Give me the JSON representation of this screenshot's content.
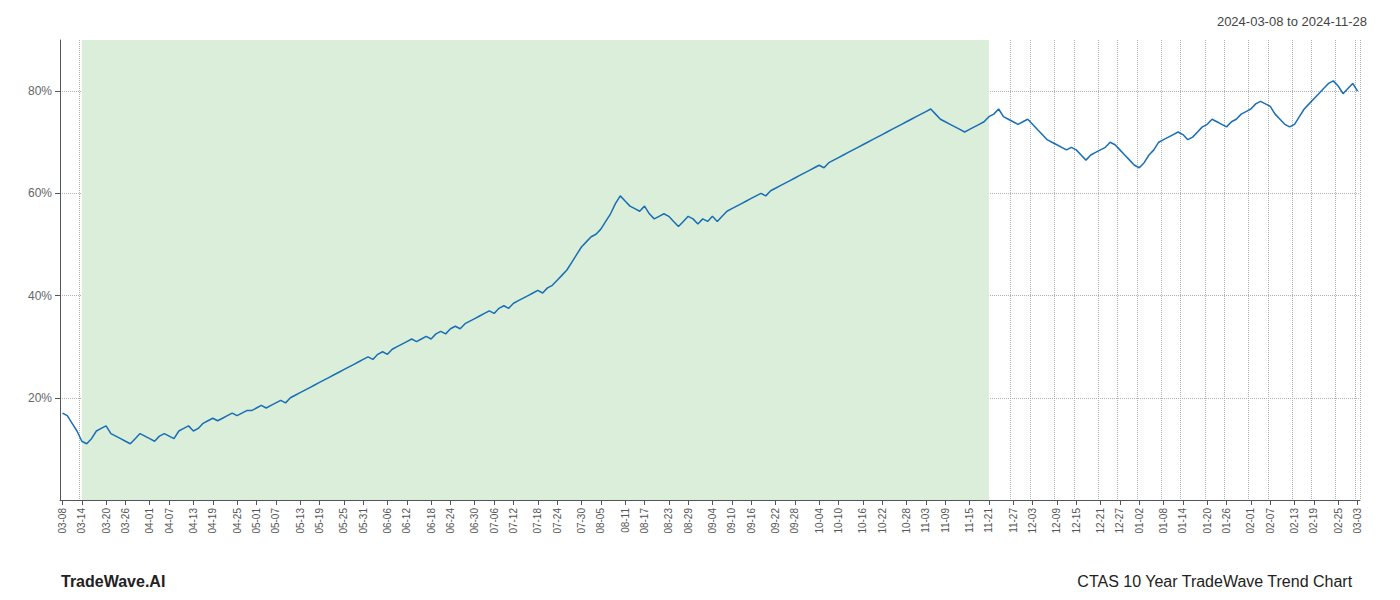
{
  "chart_data": {
    "type": "line",
    "title": "CTAS 10 Year TradeWave Trend Chart",
    "subtitle": "2024-03-08 to 2024-11-28",
    "annotations": [
      "TradeWave.AI"
    ],
    "categories": [
      "03-08",
      null,
      null,
      null,
      "03-14",
      null,
      null,
      null,
      null,
      "03-20",
      null,
      null,
      null,
      "03-26",
      null,
      null,
      null,
      null,
      "04-01",
      null,
      null,
      null,
      "04-07",
      null,
      null,
      null,
      null,
      "04-13",
      null,
      null,
      null,
      "04-19",
      null,
      null,
      null,
      null,
      "04-25",
      null,
      null,
      null,
      "05-01",
      null,
      null,
      null,
      "05-07",
      null,
      null,
      null,
      null,
      "05-13",
      null,
      null,
      null,
      "05-19",
      null,
      null,
      null,
      null,
      "05-25",
      null,
      null,
      null,
      "05-31",
      null,
      null,
      null,
      null,
      "06-06",
      null,
      null,
      null,
      "06-12",
      null,
      null,
      null,
      null,
      "06-18",
      null,
      null,
      null,
      "06-24",
      null,
      null,
      null,
      null,
      "06-30",
      null,
      null,
      null,
      "07-06",
      null,
      null,
      null,
      "07-12",
      null,
      null,
      null,
      null,
      "07-18",
      null,
      null,
      null,
      "07-24",
      null,
      null,
      null,
      null,
      "07-30",
      null,
      null,
      null,
      "08-05",
      null,
      null,
      null,
      null,
      "08-11",
      null,
      null,
      null,
      "08-17",
      null,
      null,
      null,
      null,
      "08-23",
      null,
      null,
      null,
      "08-29",
      null,
      null,
      null,
      null,
      "09-04",
      null,
      null,
      null,
      "09-10",
      null,
      null,
      null,
      "09-16",
      null,
      null,
      null,
      null,
      "09-22",
      null,
      null,
      null,
      "09-28",
      null,
      null,
      null,
      null,
      "10-04",
      null,
      null,
      null,
      "10-10",
      null,
      null,
      null,
      null,
      "10-16",
      null,
      null,
      null,
      "10-22",
      null,
      null,
      null,
      null,
      "10-28",
      null,
      null,
      null,
      "11-03",
      null,
      null,
      null,
      "11-09",
      null,
      null,
      null,
      null,
      "11-15",
      null,
      null,
      null,
      "11-21",
      null,
      null,
      null,
      null,
      "11-27",
      null,
      null,
      null,
      "12-03",
      null,
      null,
      null,
      null,
      "12-09",
      null,
      null,
      null,
      "12-15",
      null,
      null,
      null,
      null,
      "12-21",
      null,
      null,
      null,
      "12-27",
      null,
      null,
      null,
      "01-02",
      null,
      null,
      null,
      null,
      "01-08",
      null,
      null,
      null,
      "01-14",
      null,
      null,
      null,
      null,
      "01-20",
      null,
      null,
      null,
      "01-26",
      null,
      null,
      null,
      null,
      "02-01",
      null,
      null,
      null,
      "02-07",
      null,
      null,
      null,
      null,
      "02-13",
      null,
      null,
      null,
      "02-19",
      null,
      null,
      null,
      null,
      "02-25",
      null,
      null,
      null,
      "03-03"
    ],
    "values": [
      17.0,
      16.5,
      15.0,
      13.5,
      11.5,
      11.0,
      12.0,
      13.5,
      14.0,
      14.5,
      13.0,
      12.5,
      12.0,
      11.5,
      11.0,
      12.0,
      13.0,
      12.5,
      12.0,
      11.5,
      12.5,
      13.0,
      12.5,
      12.0,
      13.5,
      14.0,
      14.5,
      13.5,
      14.0,
      15.0,
      15.5,
      16.0,
      15.5,
      16.0,
      16.5,
      17.0,
      16.5,
      17.0,
      17.5,
      17.5,
      18.0,
      18.5,
      18.0,
      18.5,
      19.0,
      19.5,
      19.0,
      20.0,
      20.5,
      21.0,
      21.5,
      22.0,
      22.5,
      23.0,
      23.5,
      24.0,
      24.5,
      25.0,
      25.5,
      26.0,
      26.5,
      27.0,
      27.5,
      28.0,
      27.5,
      28.5,
      29.0,
      28.5,
      29.5,
      30.0,
      30.5,
      31.0,
      31.5,
      31.0,
      31.5,
      32.0,
      31.5,
      32.5,
      33.0,
      32.5,
      33.5,
      34.0,
      33.5,
      34.5,
      35.0,
      35.5,
      36.0,
      36.5,
      37.0,
      36.5,
      37.5,
      38.0,
      37.5,
      38.5,
      39.0,
      39.5,
      40.0,
      40.5,
      41.0,
      40.5,
      41.5,
      42.0,
      43.0,
      44.0,
      45.0,
      46.5,
      48.0,
      49.5,
      50.5,
      51.5,
      52.0,
      53.0,
      54.5,
      56.0,
      58.0,
      59.5,
      58.5,
      57.5,
      57.0,
      56.5,
      57.5,
      56.0,
      55.0,
      55.5,
      56.0,
      55.5,
      54.5,
      53.5,
      54.5,
      55.5,
      55.0,
      54.0,
      55.0,
      54.5,
      55.5,
      54.5,
      55.5,
      56.5,
      57.0,
      57.5,
      58.0,
      58.5,
      59.0,
      59.5,
      60.0,
      59.5,
      60.5,
      61.0,
      61.5,
      62.0,
      62.5,
      63.0,
      63.5,
      64.0,
      64.5,
      65.0,
      65.5,
      65.0,
      66.0,
      66.5,
      67.0,
      67.5,
      68.0,
      68.5,
      69.0,
      69.5,
      70.0,
      70.5,
      71.0,
      71.5,
      72.0,
      72.5,
      73.0,
      73.5,
      74.0,
      74.5,
      75.0,
      75.5,
      76.0,
      76.5,
      75.5,
      74.5,
      74.0,
      73.5,
      73.0,
      72.5,
      72.0,
      72.5,
      73.0,
      73.5,
      74.0,
      75.0,
      75.5,
      76.5,
      75.0,
      74.5,
      74.0,
      73.5,
      74.0,
      74.5,
      73.5,
      72.5,
      71.5,
      70.5,
      70.0,
      69.5,
      69.0,
      68.5,
      69.0,
      68.5,
      67.5,
      66.5,
      67.5,
      68.0,
      68.5,
      69.0,
      70.0,
      69.5,
      68.5,
      67.5,
      66.5,
      65.5,
      65.0,
      66.0,
      67.5,
      68.5,
      70.0,
      70.5,
      71.0,
      71.5,
      72.0,
      71.5,
      70.5,
      71.0,
      72.0,
      73.0,
      73.5,
      74.5,
      74.0,
      73.5,
      73.0,
      74.0,
      74.5,
      75.5,
      76.0,
      76.5,
      77.5,
      78.0,
      77.5,
      77.0,
      75.5,
      74.5,
      73.5,
      73.0,
      73.5,
      75.0,
      76.5,
      77.5,
      78.5,
      79.5,
      80.5,
      81.5,
      82.0,
      81.0,
      79.5,
      80.5,
      81.5,
      80.0
    ],
    "color": "#1a6eb5",
    "ylim": [
      0,
      90
    ],
    "yticks": [
      {
        "value": 20,
        "label": "20%"
      },
      {
        "value": 40,
        "label": "40%"
      },
      {
        "value": 60,
        "label": "60%"
      },
      {
        "value": 80,
        "label": "80%"
      }
    ],
    "grid": true,
    "shaded_region": {
      "from": "03-14",
      "to": "11-21",
      "color": "#daeeda"
    }
  }
}
